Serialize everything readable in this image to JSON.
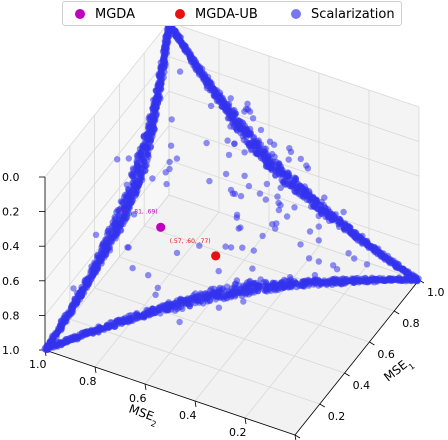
{
  "chart_data": {
    "type": "scatter",
    "projection": "3d",
    "legend": {
      "placement": "top-center",
      "entries": [
        {
          "label": "MGDA",
          "color": "#c000c0"
        },
        {
          "label": "MGDA-UB",
          "color": "#e81010"
        },
        {
          "label": "Scalarization",
          "color": "#4a4aee"
        }
      ]
    },
    "axes": {
      "x": {
        "label": "MSE1",
        "label_main": "MSE",
        "label_sub": "1",
        "range": [
          0.0,
          1.0
        ],
        "ticks": [
          "0.0",
          "0.2",
          "0.4",
          "0.6",
          "0.8",
          "1.0"
        ]
      },
      "y": {
        "label": "MSE2",
        "label_main": "MSE",
        "label_sub": "2",
        "range": [
          0.0,
          1.0
        ],
        "ticks": [
          "0.0",
          "0.2",
          "0.4",
          "0.6",
          "0.8",
          "1.0"
        ]
      },
      "z": {
        "range": [
          0.0,
          1.0
        ],
        "inverted": true,
        "ticks": [
          "0.0",
          "0.2",
          "0.4",
          "0.6",
          "0.8",
          "1.0"
        ]
      }
    },
    "grid": true,
    "series": [
      {
        "name": "MGDA",
        "color": "#c000c0",
        "points": [
          {
            "x": 0.55,
            "y": 0.81,
            "z": 0.69,
            "annotation": "(.55, .81, .69)"
          }
        ]
      },
      {
        "name": "MGDA-UB",
        "color": "#e81010",
        "points": [
          {
            "x": 0.57,
            "y": 0.6,
            "z": 0.77,
            "annotation": "(.57, .60, .77)"
          }
        ]
      },
      {
        "name": "Scalarization",
        "color": "#3333ee",
        "description_shape": "dense curved-triangle front",
        "vertices": [
          {
            "x": 1.0,
            "y": 1.0,
            "z": 0.0
          },
          {
            "x": 0.0,
            "y": 1.0,
            "z": 1.0
          },
          {
            "x": 1.0,
            "y": 0.0,
            "z": 1.0
          }
        ]
      }
    ]
  }
}
